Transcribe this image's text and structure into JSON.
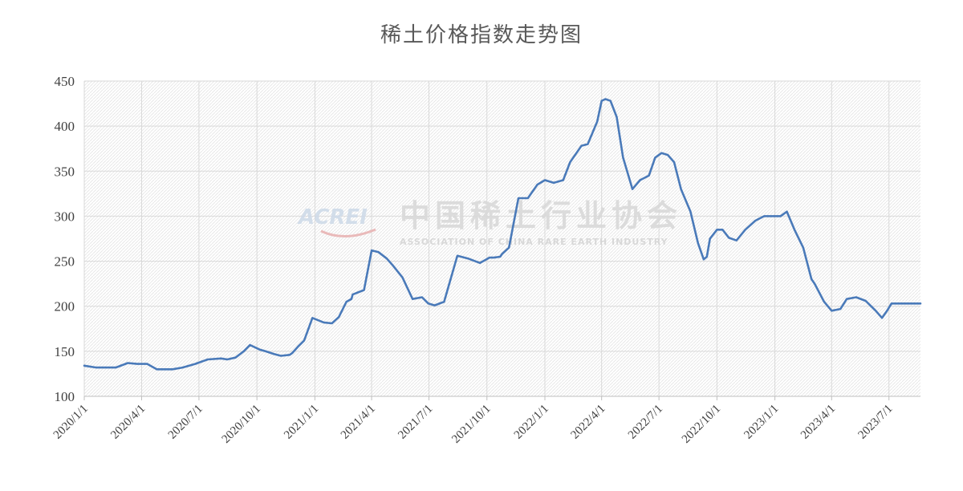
{
  "chart_data": {
    "type": "line",
    "title": "稀土价格指数走势图",
    "xlabel": "",
    "ylabel": "",
    "ylim": [
      100,
      450
    ],
    "yticks": [
      "100",
      "150",
      "200",
      "250",
      "300",
      "350",
      "400",
      "450"
    ],
    "xlim": [
      "2020-01-01",
      "2023-08-20"
    ],
    "xticks": [
      "2020/1/1",
      "2020/4/1",
      "2020/7/1",
      "2020/10/1",
      "2021/1/1",
      "2021/4/1",
      "2021/7/1",
      "2021/10/1",
      "2022/1/1",
      "2022/4/1",
      "2022/7/1",
      "2022/10/1",
      "2023/1/1",
      "2023/4/1",
      "2023/7/1"
    ],
    "grid": true,
    "legend": "none",
    "line_color": "#4a7ab9",
    "series": [
      {
        "x": [
          "2020-01-01",
          "2020-01-20",
          "2020-02-10",
          "2020-02-20",
          "2020-03-10",
          "2020-03-25",
          "2020-04-10",
          "2020-04-25",
          "2020-05-10",
          "2020-05-20",
          "2020-06-05",
          "2020-06-20",
          "2020-06-25",
          "2020-07-15",
          "2020-08-05",
          "2020-08-15",
          "2020-08-28",
          "2020-09-10",
          "2020-09-20",
          "2020-10-05",
          "2020-10-15",
          "2020-10-28",
          "2020-11-08",
          "2020-11-22",
          "2020-11-26",
          "2020-12-05",
          "2020-12-15",
          "2020-12-28",
          "2021-01-15",
          "2021-01-28",
          "2021-02-08",
          "2021-02-20",
          "2021-02-28",
          "2021-03-02",
          "2021-03-20",
          "2021-04-01",
          "2021-04-12",
          "2021-04-25",
          "2021-05-05",
          "2021-05-20",
          "2021-06-05",
          "2021-06-20",
          "2021-06-30",
          "2021-07-10",
          "2021-07-25",
          "2021-08-01",
          "2021-08-15",
          "2021-09-01",
          "2021-09-20",
          "2021-10-05",
          "2021-10-12",
          "2021-10-22",
          "2021-10-25",
          "2021-11-05",
          "2021-11-20",
          "2021-12-05",
          "2021-12-20",
          "2022-01-01",
          "2022-01-15",
          "2022-01-30",
          "2022-02-10",
          "2022-02-20",
          "2022-02-28",
          "2022-03-10",
          "2022-03-25",
          "2022-04-01",
          "2022-04-07",
          "2022-04-15",
          "2022-04-25",
          "2022-05-05",
          "2022-05-20",
          "2022-06-01",
          "2022-06-15",
          "2022-06-25",
          "2022-07-05",
          "2022-07-15",
          "2022-07-25",
          "2022-08-05",
          "2022-08-20",
          "2022-09-01",
          "2022-09-10",
          "2022-09-15",
          "2022-09-20",
          "2022-10-01",
          "2022-10-10",
          "2022-10-20",
          "2022-11-01",
          "2022-11-15",
          "2022-12-01",
          "2022-12-15",
          "2023-01-01",
          "2023-01-10",
          "2023-01-20",
          "2023-02-01",
          "2023-02-15",
          "2023-02-28",
          "2023-03-05",
          "2023-03-20",
          "2023-04-01",
          "2023-04-15",
          "2023-04-25",
          "2023-05-10",
          "2023-05-25",
          "2023-06-10",
          "2023-06-20",
          "2023-06-28",
          "2023-07-05",
          "2023-07-15",
          "2023-07-25",
          "2023-08-05",
          "2023-08-20"
        ],
        "values": [
          134,
          132,
          132,
          132,
          137,
          136,
          136,
          130,
          130,
          130,
          132,
          135,
          136,
          141,
          142,
          141,
          143,
          150,
          157,
          152,
          150,
          147,
          145,
          146,
          148,
          155,
          162,
          187,
          182,
          181,
          188,
          205,
          208,
          213,
          218,
          262,
          260,
          253,
          245,
          232,
          208,
          210,
          203,
          201,
          205,
          222,
          256,
          253,
          248,
          254,
          254,
          255,
          258,
          265,
          320,
          320,
          335,
          340,
          337,
          340,
          360,
          370,
          378,
          380,
          405,
          428,
          430,
          428,
          410,
          365,
          330,
          340,
          345,
          365,
          370,
          368,
          360,
          330,
          305,
          270,
          252,
          255,
          275,
          285,
          285,
          276,
          273,
          285,
          295,
          300,
          300,
          300,
          305,
          285,
          265,
          230,
          225,
          205,
          195,
          197,
          208,
          210,
          206,
          195,
          187,
          195,
          203,
          203,
          203,
          203,
          203
        ]
      }
    ]
  },
  "watermark": {
    "en": "ACREI",
    "cn": "中国稀土行业协会",
    "sub": "ASSOCIATION OF CHINA RARE EARTH INDUSTRY"
  }
}
